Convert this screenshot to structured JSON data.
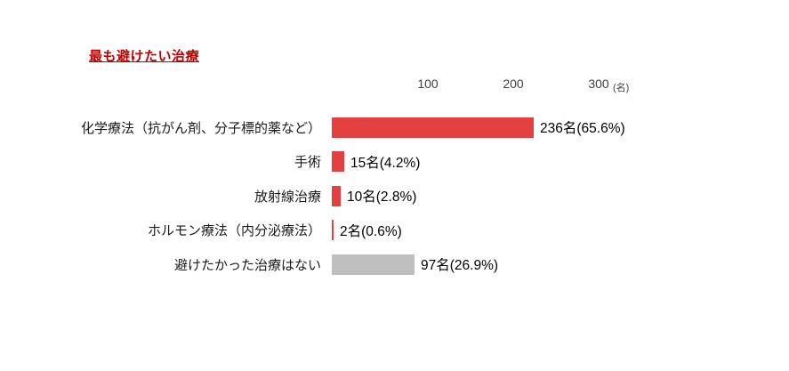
{
  "title": "最も避けたい治療",
  "axis": {
    "ticks": [
      "100",
      "200",
      "300"
    ],
    "tick_values": [
      100,
      200,
      300
    ],
    "unit": "(名)",
    "max": 300
  },
  "chart_data": {
    "type": "bar",
    "orientation": "horizontal",
    "title": "最も避けたい治療",
    "xlabel": "(名)",
    "ylabel": "",
    "xlim": [
      0,
      300
    ],
    "grid": false,
    "legend": false,
    "categories": [
      "化学療法（抗がん剤、分子標的薬など）",
      "手術",
      "放射線治療",
      "ホルモン療法（内分泌療法）",
      "避けたかった治療はない"
    ],
    "values": [
      236,
      15,
      10,
      2,
      97
    ],
    "data_labels": [
      "236名(65.6%)",
      "15名(4.2%)",
      "10名(2.8%)",
      "2名(0.6%)",
      "97名(26.9%)"
    ],
    "bar_colors": [
      "#e4403f",
      "#e4403f",
      "#e4403f",
      "#e4403f",
      "#bfbfbf"
    ]
  },
  "colors": {
    "accent_red": "#e4403f",
    "neutral_gray": "#bfbfbf",
    "title_red": "#c00000",
    "text": "#1a1a1a"
  }
}
